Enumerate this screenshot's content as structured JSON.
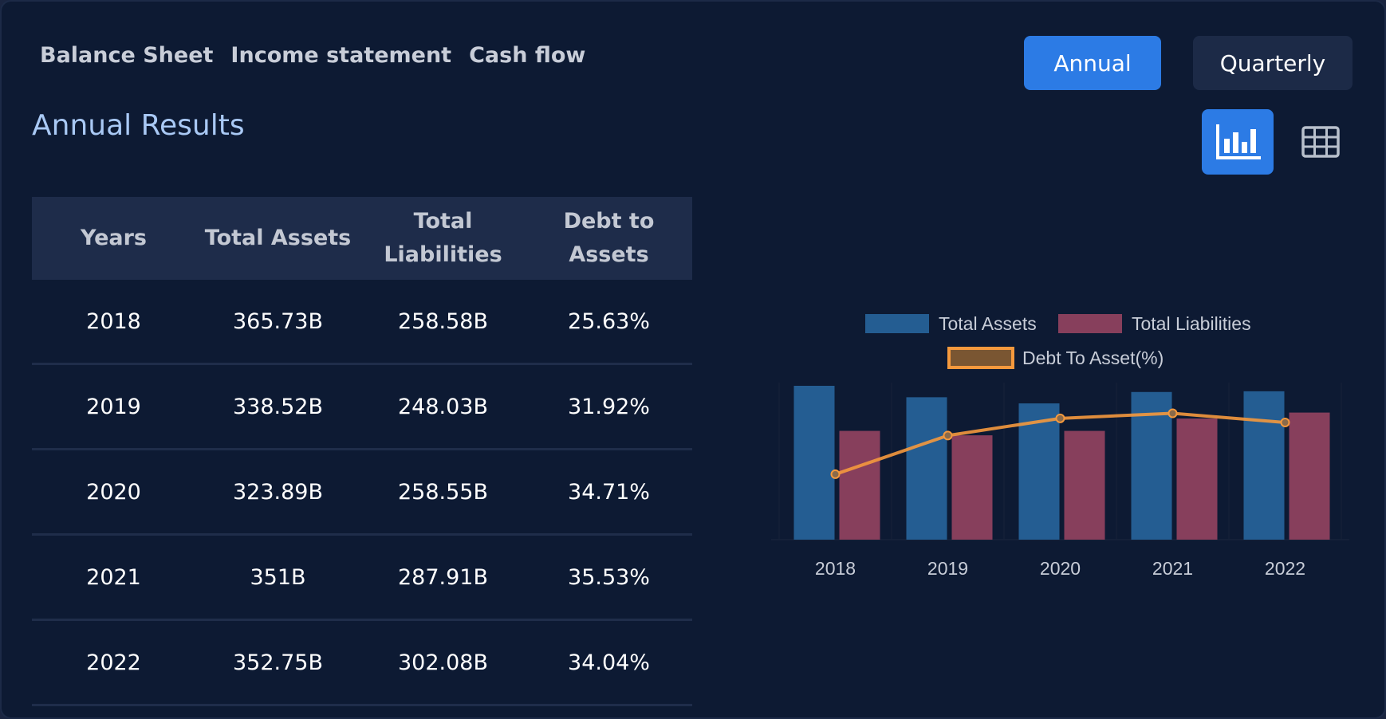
{
  "tabs": [
    "Balance Sheet",
    "Income statement",
    "Cash flow"
  ],
  "title": "Annual Results",
  "period_buttons": {
    "annual": "Annual",
    "quarterly": "Quarterly"
  },
  "view_icons": {
    "chart": "bar-chart-icon",
    "table": "table-grid-icon"
  },
  "colors": {
    "accent": "#2c7be5",
    "assets": "#245d92",
    "liabilities": "#873f5c",
    "ratio": "#f5993d"
  },
  "table": {
    "headers": [
      "Years",
      "Total Assets",
      "Total Liabilities",
      "Debt to Assets"
    ],
    "rows": [
      [
        "2018",
        "365.73B",
        "258.58B",
        "25.63%"
      ],
      [
        "2019",
        "338.52B",
        "248.03B",
        "31.92%"
      ],
      [
        "2020",
        "323.89B",
        "258.55B",
        "34.71%"
      ],
      [
        "2021",
        "351B",
        "287.91B",
        "35.53%"
      ],
      [
        "2022",
        "352.75B",
        "302.08B",
        "34.04%"
      ]
    ]
  },
  "chart_data": {
    "type": "bar",
    "categories": [
      "2018",
      "2019",
      "2020",
      "2021",
      "2022"
    ],
    "series": [
      {
        "name": "Total Assets",
        "type": "bar",
        "values": [
          365.73,
          338.52,
          323.89,
          351,
          352.75
        ]
      },
      {
        "name": "Total Liabilities",
        "type": "bar",
        "values": [
          258.58,
          248.03,
          258.55,
          287.91,
          302.08
        ]
      },
      {
        "name": "Debt To Asset(%)",
        "type": "line",
        "values": [
          25.63,
          31.92,
          34.71,
          35.53,
          34.04
        ]
      }
    ],
    "legend_position": "top",
    "ylim": [
      0,
      365.73
    ],
    "y2lim": [
      15,
      40
    ]
  }
}
